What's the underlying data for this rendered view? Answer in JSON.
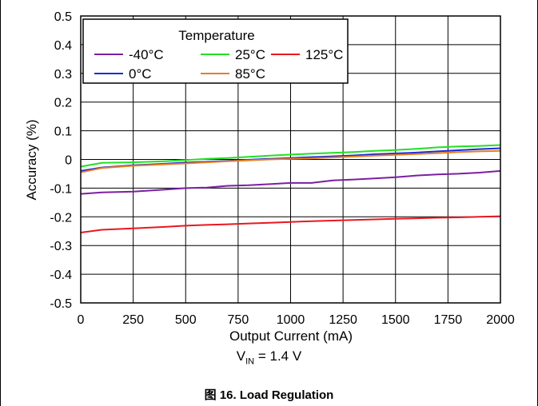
{
  "chart_data": {
    "type": "line",
    "xlabel": "Output Current (mA)",
    "ylabel": "Accuracy (%)",
    "xlim": [
      0,
      2000
    ],
    "ylim": [
      -0.5,
      0.5
    ],
    "x_ticks": [
      "0",
      "250",
      "500",
      "750",
      "1000",
      "1250",
      "1500",
      "1750",
      "2000"
    ],
    "y_ticks": [
      "0.5",
      "0.4",
      "0.3",
      "0.2",
      "0.1",
      "0",
      "-0.1",
      "-0.2",
      "-0.3",
      "-0.4",
      "-0.5"
    ],
    "grid": true,
    "legend": {
      "title": "Temperature",
      "placement": "top-left"
    },
    "series": [
      {
        "name": "-40°C",
        "color": "#7B1FA2",
        "x": [
          0,
          100,
          250,
          400,
          500,
          600,
          700,
          800,
          900,
          1000,
          1100,
          1200,
          1300,
          1400,
          1500,
          1600,
          1700,
          1800,
          1900,
          2000
        ],
        "y": [
          -0.12,
          -0.115,
          -0.112,
          -0.105,
          -0.1,
          -0.098,
          -0.092,
          -0.09,
          -0.086,
          -0.082,
          -0.082,
          -0.073,
          -0.07,
          -0.066,
          -0.062,
          -0.056,
          -0.052,
          -0.05,
          -0.046,
          -0.04
        ]
      },
      {
        "name": "25°C",
        "color": "#22E022",
        "x": [
          0,
          100,
          250,
          400,
          500,
          600,
          700,
          800,
          900,
          1000,
          1100,
          1200,
          1300,
          1400,
          1500,
          1600,
          1700,
          1800,
          1900,
          2000
        ],
        "y": [
          -0.025,
          -0.012,
          -0.01,
          -0.006,
          -0.002,
          0.002,
          0.005,
          0.009,
          0.013,
          0.017,
          0.02,
          0.023,
          0.026,
          0.03,
          0.033,
          0.037,
          0.042,
          0.045,
          0.047,
          0.05
        ]
      },
      {
        "name": "125°C",
        "color": "#E8181F",
        "x": [
          0,
          100,
          250,
          400,
          500,
          600,
          700,
          800,
          900,
          1000,
          1100,
          1200,
          1300,
          1400,
          1500,
          1600,
          1700,
          1800,
          1900,
          2000
        ],
        "y": [
          -0.255,
          -0.245,
          -0.24,
          -0.235,
          -0.231,
          -0.228,
          -0.226,
          -0.223,
          -0.221,
          -0.218,
          -0.215,
          -0.213,
          -0.211,
          -0.209,
          -0.207,
          -0.205,
          -0.203,
          -0.202,
          -0.2,
          -0.198
        ]
      },
      {
        "name": "0°C",
        "color": "#1A2BD6",
        "x": [
          0,
          100,
          250,
          400,
          500,
          600,
          700,
          800,
          900,
          1000,
          1100,
          1200,
          1300,
          1400,
          1500,
          1600,
          1700,
          1800,
          1900,
          2000
        ],
        "y": [
          -0.04,
          -0.028,
          -0.02,
          -0.015,
          -0.011,
          -0.008,
          -0.005,
          -0.001,
          0.002,
          0.005,
          0.008,
          0.011,
          0.014,
          0.018,
          0.021,
          0.024,
          0.028,
          0.032,
          0.036,
          0.039
        ]
      },
      {
        "name": "85°C",
        "color": "#E67E22",
        "x": [
          0,
          100,
          250,
          400,
          500,
          600,
          700,
          800,
          900,
          1000,
          1100,
          1200,
          1300,
          1400,
          1500,
          1600,
          1700,
          1800,
          1900,
          2000
        ],
        "y": [
          -0.045,
          -0.03,
          -0.022,
          -0.017,
          -0.014,
          -0.01,
          -0.006,
          -0.003,
          0.0,
          0.002,
          0.004,
          0.007,
          0.01,
          0.013,
          0.016,
          0.019,
          0.022,
          0.026,
          0.028,
          0.03
        ]
      }
    ]
  },
  "condition": {
    "v": "V",
    "sub": "IN",
    "rest": " = 1.4 V"
  },
  "caption": "图 16. Load Regulation"
}
